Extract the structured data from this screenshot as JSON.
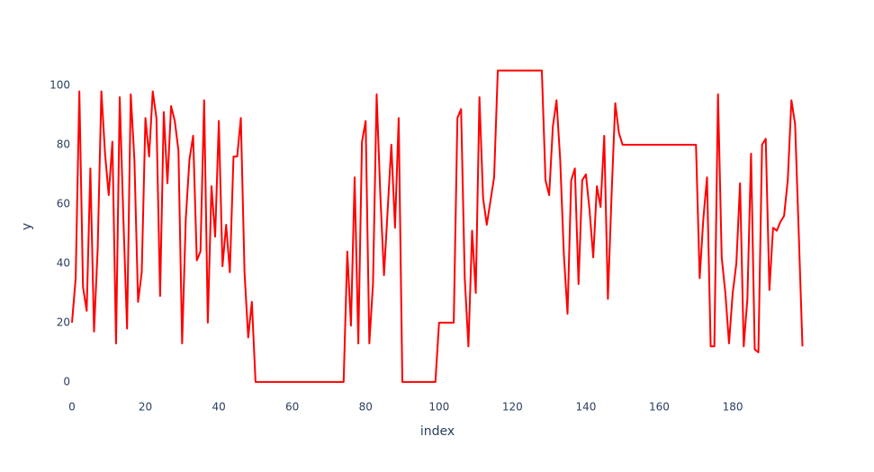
{
  "chart_data": {
    "type": "line",
    "x_label": "index",
    "y_label": "y",
    "x": [
      0,
      1,
      2,
      3,
      4,
      5,
      6,
      7,
      8,
      9,
      10,
      11,
      12,
      13,
      14,
      15,
      16,
      17,
      18,
      19,
      20,
      21,
      22,
      23,
      24,
      25,
      26,
      27,
      28,
      29,
      30,
      31,
      32,
      33,
      34,
      35,
      36,
      37,
      38,
      39,
      40,
      41,
      42,
      43,
      44,
      45,
      46,
      47,
      48,
      49,
      50,
      51,
      52,
      53,
      54,
      55,
      56,
      57,
      58,
      59,
      60,
      61,
      62,
      63,
      64,
      65,
      66,
      67,
      68,
      69,
      70,
      71,
      72,
      73,
      74,
      75,
      76,
      77,
      78,
      79,
      80,
      81,
      82,
      83,
      84,
      85,
      86,
      87,
      88,
      89,
      90,
      91,
      92,
      93,
      94,
      95,
      96,
      97,
      98,
      99,
      100,
      101,
      102,
      103,
      104,
      105,
      106,
      107,
      108,
      109,
      110,
      111,
      112,
      113,
      114,
      115,
      116,
      117,
      118,
      119,
      120,
      121,
      122,
      123,
      124,
      125,
      126,
      127,
      128,
      129,
      130,
      131,
      132,
      133,
      134,
      135,
      136,
      137,
      138,
      139,
      140,
      141,
      142,
      143,
      144,
      145,
      146,
      147,
      148,
      149,
      150,
      151,
      152,
      153,
      154,
      155,
      156,
      157,
      158,
      159,
      160,
      161,
      162,
      163,
      164,
      165,
      166,
      167,
      168,
      169,
      170,
      171,
      172,
      173,
      174,
      175,
      176,
      177,
      178,
      179,
      180,
      181,
      182,
      183,
      184,
      185,
      186,
      187,
      188,
      189,
      190,
      191,
      192,
      193,
      194,
      195,
      196,
      197,
      198,
      199
    ],
    "series": [
      {
        "color": "#ff0000",
        "values": [
          20,
          35,
          98,
          32,
          24,
          72,
          17,
          45,
          98,
          77,
          63,
          81,
          13,
          96,
          55,
          18,
          97,
          75,
          27,
          37,
          89,
          76,
          98,
          89,
          29,
          91,
          67,
          93,
          88,
          78,
          13,
          55,
          75,
          83,
          41,
          44,
          95,
          20,
          66,
          49,
          88,
          39,
          53,
          37,
          76,
          76,
          89,
          37,
          15,
          27,
          0,
          0,
          0,
          0,
          0,
          0,
          0,
          0,
          0,
          0,
          0,
          0,
          0,
          0,
          0,
          0,
          0,
          0,
          0,
          0,
          0,
          0,
          0,
          0,
          0,
          44,
          19,
          69,
          13,
          81,
          88,
          13,
          33,
          97,
          63,
          36,
          58,
          80,
          52,
          89,
          0,
          0,
          0,
          0,
          0,
          0,
          0,
          0,
          0,
          0,
          20,
          20,
          20,
          20,
          20,
          89,
          92,
          35,
          12,
          51,
          30,
          96,
          62,
          53,
          61,
          69,
          105,
          105,
          105,
          105,
          105,
          105,
          105,
          105,
          105,
          105,
          105,
          105,
          105,
          68,
          63,
          86,
          95,
          75,
          43,
          23,
          68,
          72,
          33,
          68,
          70,
          58,
          42,
          66,
          59,
          83,
          28,
          63,
          94,
          84,
          80,
          80,
          80,
          80,
          80,
          80,
          80,
          80,
          80,
          80,
          80,
          80,
          80,
          80,
          80,
          80,
          80,
          80,
          80,
          80,
          80,
          35,
          55,
          69,
          12,
          12,
          97,
          42,
          30,
          13,
          30,
          40,
          67,
          12,
          28,
          77,
          11,
          10,
          80,
          82,
          31,
          52,
          51,
          54,
          56,
          68,
          95,
          87,
          50,
          12
        ]
      }
    ],
    "xlim": [
      0,
      199
    ],
    "xticks": [
      0,
      20,
      40,
      60,
      80,
      100,
      120,
      140,
      160,
      180
    ],
    "ylim": [
      -5.8,
      110.6
    ],
    "yticks": [
      0,
      20,
      40,
      60,
      80,
      100
    ],
    "grid": false
  }
}
